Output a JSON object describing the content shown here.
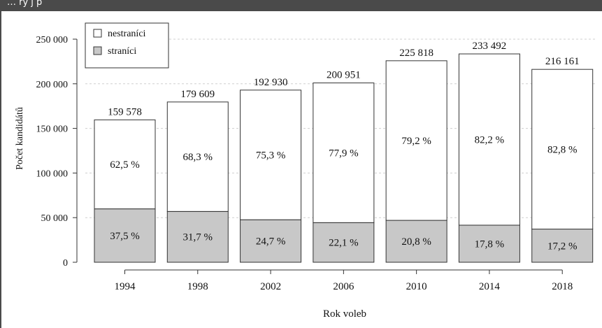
{
  "header_text": "… ry j p",
  "chart_data": {
    "type": "bar",
    "stacked": true,
    "categories": [
      "1994",
      "1998",
      "2002",
      "2006",
      "2010",
      "2014",
      "2018"
    ],
    "totals": [
      "159 578",
      "179 609",
      "192 930",
      "200 951",
      "225 818",
      "233 492",
      "216 161"
    ],
    "total_values": [
      159578,
      179609,
      192930,
      200951,
      225818,
      233492,
      216161
    ],
    "series": [
      {
        "name": "straníci",
        "color": "#c8c8c8",
        "percent_labels": [
          "37,5 %",
          "31,7 %",
          "24,7 %",
          "22,1 %",
          "20,8 %",
          "17,8 %",
          "17,2 %"
        ],
        "percent_values": [
          37.5,
          31.7,
          24.7,
          22.1,
          20.8,
          17.8,
          17.2
        ]
      },
      {
        "name": "nestraníci",
        "color": "#ffffff",
        "percent_labels": [
          "62,5 %",
          "68,3 %",
          "75,3 %",
          "77,9 %",
          "79,2 %",
          "82,2 %",
          "82,8 %"
        ],
        "percent_values": [
          62.5,
          68.3,
          75.3,
          77.9,
          79.2,
          82.2,
          82.8
        ]
      }
    ],
    "xlabel": "Rok voleb",
    "ylabel": "Počet kandidátů",
    "yticks": [
      0,
      50000,
      100000,
      150000,
      200000,
      250000
    ],
    "ytick_labels": [
      "0",
      "50 000",
      "100 000",
      "150 000",
      "200 000",
      "250 000"
    ],
    "ylim": [
      0,
      250000
    ],
    "grid": "horizontal dashed",
    "legend_position": "top-left"
  }
}
